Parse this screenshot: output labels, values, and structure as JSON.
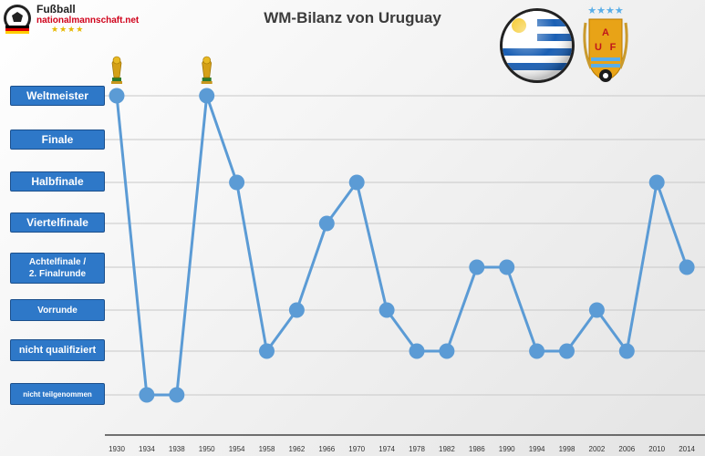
{
  "logo": {
    "line1": "Fußball",
    "line2": "nationalmannschaft.net",
    "stars": "★★★★"
  },
  "emblem": {
    "stars": "★★★★",
    "letters": [
      "A",
      "U",
      "F"
    ]
  },
  "chart_data": {
    "type": "line",
    "title": "WM-Bilanz von Uruguay",
    "categories": [
      "1930",
      "1934",
      "1938",
      "1950",
      "1954",
      "1958",
      "1962",
      "1966",
      "1970",
      "1974",
      "1978",
      "1982",
      "1986",
      "1990",
      "1994",
      "1998",
      "2002",
      "2006",
      "2010",
      "2014"
    ],
    "y_levels": [
      "nicht teilgenommen",
      "nicht qualifiziert",
      "Vorrunde",
      "Achtelfinale / 2. Finalrunde",
      "Viertelfinale",
      "Halbfinale",
      "Finale",
      "Weltmeister"
    ],
    "values": [
      7,
      0,
      0,
      7,
      5,
      1,
      2,
      4,
      5,
      2,
      1,
      1,
      3,
      3,
      1,
      1,
      2,
      1,
      5,
      3
    ],
    "trophies": [
      "1930",
      "1950"
    ],
    "series_color": "#5b9bd5",
    "grid": true
  }
}
